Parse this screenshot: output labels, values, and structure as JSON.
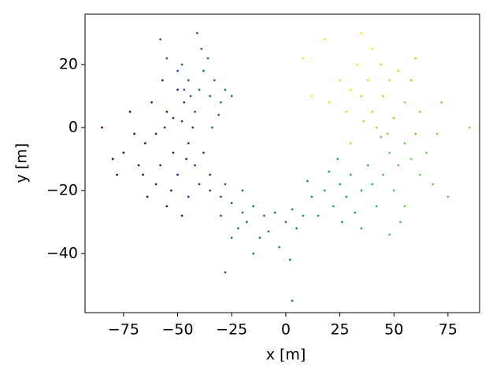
{
  "chart_data": {
    "type": "scatter",
    "colormap": "viridis",
    "x_label": "x [m]",
    "y_label": "y [m]",
    "xlim": [
      -92.8,
      89.6
    ],
    "ylim": [
      -58.8,
      36
    ],
    "xticks": [
      {
        "value": -75,
        "label": "−75"
      },
      {
        "value": -50,
        "label": "−50"
      },
      {
        "value": -25,
        "label": "−25"
      },
      0,
      25,
      50,
      75
    ],
    "yticks": [
      {
        "value": -40,
        "label": "−40"
      },
      {
        "value": -20,
        "label": "−20"
      },
      0,
      20
    ],
    "x": [
      -60,
      -55,
      -48,
      -52,
      -45,
      -58,
      -65,
      -50,
      -42,
      -56,
      -62,
      -47,
      -70,
      -53,
      -40,
      -60,
      -45,
      -68,
      -75,
      -78,
      -85,
      -35,
      -38,
      -50,
      -57,
      -72,
      -55,
      -48,
      -64,
      -43,
      -66,
      -80,
      -52,
      -46,
      -40,
      -35,
      -45,
      -38,
      -30,
      -42,
      -48,
      -33,
      -36,
      -28,
      -44,
      -50,
      -39,
      -58,
      -31,
      -47,
      -41,
      -25,
      -34,
      -55,
      -35,
      -30,
      -25,
      -20,
      -15,
      -18,
      -10,
      -5,
      0,
      -8,
      3,
      -12,
      -22,
      -28,
      -3,
      5,
      -15,
      -25,
      -30,
      2,
      -20,
      8,
      3,
      -28,
      12,
      18,
      25,
      22,
      30,
      28,
      35,
      15,
      32,
      38,
      40,
      20,
      26,
      10,
      35,
      42,
      24,
      48,
      55,
      52,
      45,
      58,
      60,
      50,
      62,
      44,
      65,
      55,
      68,
      70,
      53,
      75,
      48,
      40,
      45,
      50,
      35,
      42,
      48,
      38,
      30,
      55,
      44,
      52,
      28,
      36,
      58,
      33,
      25,
      40,
      62,
      20,
      47,
      35,
      18,
      12,
      8,
      30,
      72,
      85,
      60
    ],
    "y": [
      -2,
      5,
      2,
      -8,
      -5,
      -12,
      -5,
      -15,
      -12,
      0,
      8,
      8,
      -2,
      -20,
      -18,
      -18,
      -22,
      -12,
      -8,
      -15,
      0,
      -15,
      -8,
      12,
      15,
      5,
      -25,
      -28,
      -22,
      0,
      -15,
      -10,
      3,
      -10,
      12,
      10,
      15,
      18,
      8,
      5,
      20,
      15,
      22,
      12,
      10,
      18,
      25,
      28,
      4,
      12,
      30,
      10,
      0,
      22,
      -20,
      -22,
      -24,
      -27,
      -25,
      -30,
      -28,
      -27,
      -30,
      -33,
      -26,
      -35,
      -32,
      -18,
      -38,
      -32,
      -40,
      -35,
      -28,
      -42,
      -20,
      -28,
      -55,
      -46,
      -22,
      -20,
      -18,
      -25,
      -15,
      -22,
      -20,
      -28,
      -27,
      -12,
      -18,
      -14,
      -30,
      -17,
      -32,
      -25,
      -10,
      -8,
      -5,
      -12,
      -15,
      -10,
      -2,
      -20,
      -15,
      -3,
      -8,
      -25,
      -18,
      -2,
      -30,
      -22,
      -34,
      5,
      10,
      3,
      10,
      0,
      15,
      15,
      12,
      8,
      20,
      18,
      5,
      2,
      15,
      20,
      15,
      25,
      5,
      8,
      -2,
      30,
      28,
      10,
      22,
      -5,
      8,
      0,
      22
    ],
    "c": [
      0.08,
      0.1,
      0.12,
      0.1,
      0.12,
      0.07,
      0.05,
      0.1,
      0.13,
      0.09,
      0.08,
      0.14,
      0.05,
      0.08,
      0.15,
      0.06,
      0.12,
      0.04,
      0.03,
      0.02,
      0.02,
      0.16,
      0.17,
      0.13,
      0.1,
      0.05,
      0.07,
      0.1,
      0.05,
      0.15,
      0.05,
      0.03,
      0.1,
      0.12,
      0.35,
      0.37,
      0.32,
      0.34,
      0.38,
      0.3,
      0.3,
      0.36,
      0.34,
      0.39,
      0.33,
      0.28,
      0.33,
      0.25,
      0.38,
      0.3,
      0.32,
      0.4,
      0.36,
      0.27,
      0.2,
      0.25,
      0.3,
      0.35,
      0.38,
      0.36,
      0.4,
      0.42,
      0.45,
      0.41,
      0.46,
      0.39,
      0.33,
      0.26,
      0.43,
      0.47,
      0.38,
      0.3,
      0.25,
      0.45,
      0.33,
      0.48,
      0.45,
      0.27,
      0.52,
      0.55,
      0.58,
      0.56,
      0.62,
      0.6,
      0.63,
      0.53,
      0.6,
      0.66,
      0.65,
      0.57,
      0.58,
      0.51,
      0.62,
      0.65,
      0.6,
      0.75,
      0.78,
      0.76,
      0.72,
      0.8,
      0.8,
      0.72,
      0.78,
      0.76,
      0.8,
      0.74,
      0.78,
      0.82,
      0.73,
      0.77,
      0.72,
      0.88,
      0.9,
      0.86,
      0.93,
      0.87,
      0.92,
      0.95,
      0.97,
      0.85,
      0.93,
      0.9,
      0.96,
      0.9,
      0.86,
      0.97,
      0.98,
      0.95,
      0.84,
      0.98,
      0.84,
      1.0,
      0.99,
      0.99,
      0.98,
      0.9,
      0.83,
      0.82,
      0.88
    ]
  }
}
